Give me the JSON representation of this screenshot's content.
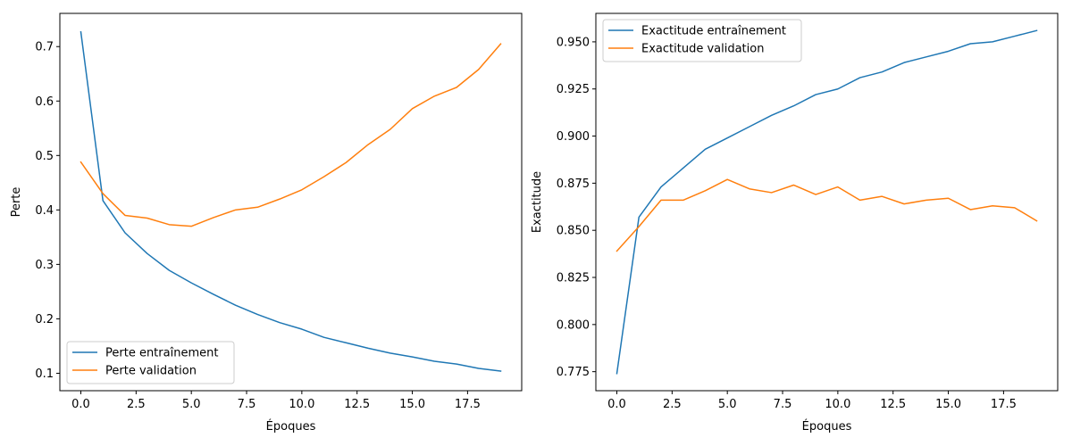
{
  "chart_data": [
    {
      "type": "line",
      "xlabel": "Époques",
      "ylabel": "Perte",
      "xlim": [
        -0.95,
        19.95
      ],
      "ylim": [
        0.068,
        0.761
      ],
      "xticks": [
        0,
        2.5,
        5,
        7.5,
        10,
        12.5,
        15,
        17.5
      ],
      "xtick_labels": [
        "0.0",
        "2.5",
        "5.0",
        "7.5",
        "10.0",
        "12.5",
        "15.0",
        "17.5"
      ],
      "yticks": [
        0.1,
        0.2,
        0.3,
        0.4,
        0.5,
        0.6,
        0.7
      ],
      "ytick_labels": [
        "0.1",
        "0.2",
        "0.3",
        "0.4",
        "0.5",
        "0.6",
        "0.7"
      ],
      "legend_position": "lower-left",
      "grid": false,
      "x": [
        0,
        1,
        2,
        3,
        4,
        5,
        6,
        7,
        8,
        9,
        10,
        11,
        12,
        13,
        14,
        15,
        16,
        17,
        18,
        19
      ],
      "series": [
        {
          "name": "Perte entraînement",
          "color": "#1f77b4",
          "values": [
            0.727,
            0.417,
            0.358,
            0.32,
            0.289,
            0.266,
            0.245,
            0.225,
            0.208,
            0.193,
            0.181,
            0.166,
            0.156,
            0.146,
            0.137,
            0.13,
            0.122,
            0.117,
            0.109,
            0.104
          ]
        },
        {
          "name": "Perte validation",
          "color": "#ff7f0e",
          "values": [
            0.488,
            0.43,
            0.39,
            0.385,
            0.373,
            0.37,
            0.386,
            0.4,
            0.405,
            0.42,
            0.437,
            0.461,
            0.487,
            0.52,
            0.548,
            0.586,
            0.609,
            0.625,
            0.658,
            0.705
          ]
        }
      ]
    },
    {
      "type": "line",
      "xlabel": "Époques",
      "ylabel": "Exactitude",
      "xlim": [
        -0.95,
        19.95
      ],
      "ylim": [
        0.7649,
        0.9651
      ],
      "xticks": [
        0,
        2.5,
        5,
        7.5,
        10,
        12.5,
        15,
        17.5
      ],
      "xtick_labels": [
        "0.0",
        "2.5",
        "5.0",
        "7.5",
        "10.0",
        "12.5",
        "15.0",
        "17.5"
      ],
      "yticks": [
        0.775,
        0.8,
        0.825,
        0.85,
        0.875,
        0.9,
        0.925,
        0.95
      ],
      "ytick_labels": [
        "0.775",
        "0.800",
        "0.825",
        "0.850",
        "0.875",
        "0.900",
        "0.925",
        "0.950"
      ],
      "legend_position": "upper-left",
      "grid": false,
      "x": [
        0,
        1,
        2,
        3,
        4,
        5,
        6,
        7,
        8,
        9,
        10,
        11,
        12,
        13,
        14,
        15,
        16,
        17,
        18,
        19
      ],
      "series": [
        {
          "name": "Exactitude entraînement",
          "color": "#1f77b4",
          "values": [
            0.774,
            0.857,
            0.873,
            0.883,
            0.893,
            0.899,
            0.905,
            0.911,
            0.916,
            0.922,
            0.925,
            0.931,
            0.934,
            0.939,
            0.942,
            0.945,
            0.949,
            0.95,
            0.953,
            0.956
          ]
        },
        {
          "name": "Exactitude validation",
          "color": "#ff7f0e",
          "values": [
            0.839,
            0.852,
            0.866,
            0.866,
            0.871,
            0.877,
            0.872,
            0.87,
            0.874,
            0.869,
            0.873,
            0.866,
            0.868,
            0.864,
            0.866,
            0.867,
            0.861,
            0.863,
            0.862,
            0.855
          ]
        }
      ]
    }
  ]
}
